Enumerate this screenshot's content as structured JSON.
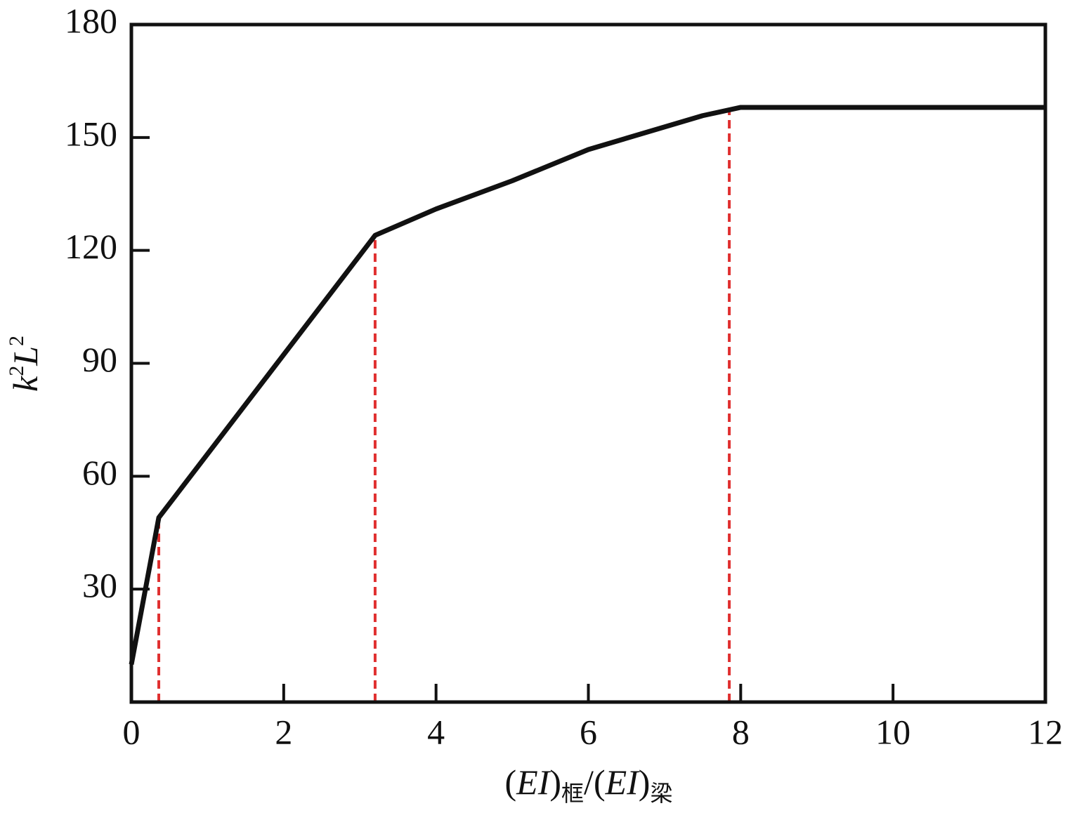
{
  "chart_data": {
    "type": "line",
    "x_label": [
      "(",
      "EI",
      ")",
      "框",
      "/(",
      "EI",
      ")",
      "梁"
    ],
    "y_label": [
      "k",
      "2",
      "L",
      "2"
    ],
    "x": [
      0,
      0.36,
      3.2,
      4.0,
      5.0,
      6.0,
      7.5,
      8.0,
      12
    ],
    "series": [
      {
        "color": "#111111",
        "values": [
          10,
          49,
          124,
          131,
          138.5,
          146.8,
          155.8,
          158,
          158
        ]
      }
    ],
    "reference_x": [
      0.36,
      3.2,
      7.85
    ],
    "reference_color": "#e03030",
    "xlim": [
      0,
      12
    ],
    "xticks": [
      0,
      2,
      4,
      6,
      8,
      10,
      12
    ],
    "ylim": [
      0,
      180
    ],
    "yticks": [
      30,
      60,
      90,
      120,
      150,
      180
    ],
    "grid": false
  }
}
